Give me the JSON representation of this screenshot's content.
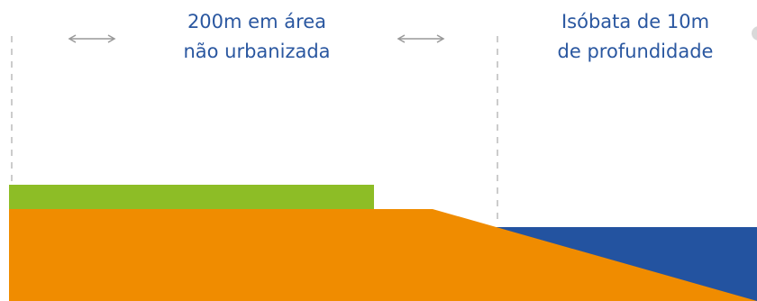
{
  "zone_label": {
    "line1": "200m em área",
    "line2": "não urbanizada"
  },
  "depth_label": {
    "line1": "Isóbata de 10m",
    "line2": "de profundidade"
  },
  "colors": {
    "text": "#2a57a0",
    "vegetation": "#8dbd26",
    "land": "#f08c00",
    "sea": "#2353a0",
    "dashed_line": "#cccccc",
    "arrow": "#999999",
    "partial_circle": "#d9d9d9"
  }
}
